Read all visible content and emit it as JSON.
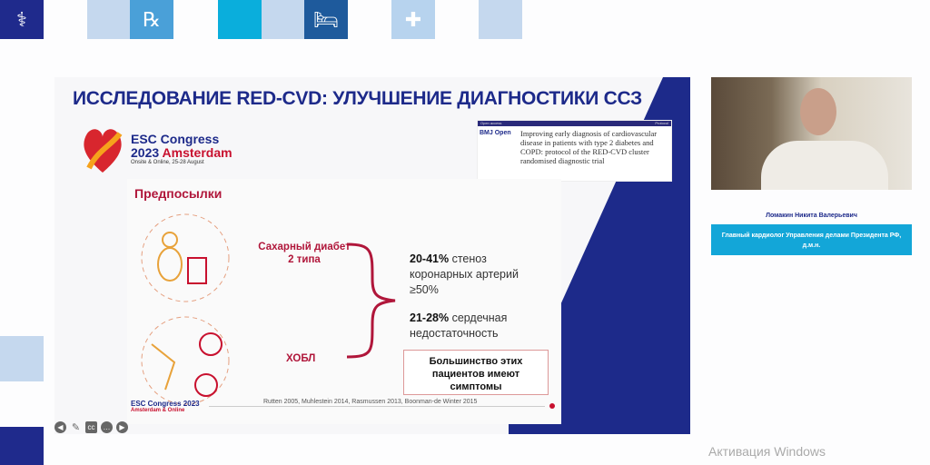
{
  "top_tiles": [
    {
      "icon": "doctor-laptop-icon",
      "color": "#1f2a8c"
    },
    {
      "icon": "",
      "color": "#c5d8ee"
    },
    {
      "icon": "prescription-icon",
      "color": "#4aa0d8"
    },
    {
      "icon": "",
      "color": "#0aaedc"
    },
    {
      "icon": "",
      "color": "#c5d8ee"
    },
    {
      "icon": "hospital-bed-icon",
      "color": "#1e5a9c"
    },
    {
      "icon": "nurse-icon",
      "color": "#b7d3ee"
    },
    {
      "icon": "",
      "color": "#c5d8ee"
    }
  ],
  "slide": {
    "title": "ИССЛЕДОВАНИЕ RED-CVD: УЛУЧШЕНИЕ ДИАГНОСТИКИ ССЗ",
    "esc_logo": {
      "line1": "ESC Congress",
      "line2a": "2023",
      "line2b": "Amsterdam",
      "line3": "Onsite & Online, 25-28 August"
    },
    "bmj": {
      "open_access": "Open access",
      "protocol": "Protocol",
      "journal": "BMJ Open",
      "article_title": "Improving early diagnosis of cardiovascular disease in patients with type 2 diabetes and COPD: protocol of the RED-CVD cluster randomised diagnostic trial"
    },
    "section": "Предпосылки",
    "condition1": "Сахарный диабет 2 типа",
    "condition2": "ХОБЛ",
    "stat1_bold": "20-41%",
    "stat1_text": " стеноз коронарных артерий ≥50%",
    "stat2_bold": "21-28%",
    "stat2_text": " сердечная недостаточность",
    "box": "Большинство этих пациентов имеют симптомы",
    "refs": "Rutten 2005, Muhlestein 2014, Rasmussen 2013, Boonman-de Winter 2015",
    "footer_line1": "ESC Congress 2023",
    "footer_line2": "Amsterdam & Online"
  },
  "speaker": {
    "name": "Ломакин Никита Валерьевич",
    "title": "Главный кардиолог Управления делами Президента РФ, д.м.н."
  },
  "controls": [
    "previous",
    "pen",
    "captions",
    "more",
    "next"
  ],
  "watermark": "Активация Windows"
}
